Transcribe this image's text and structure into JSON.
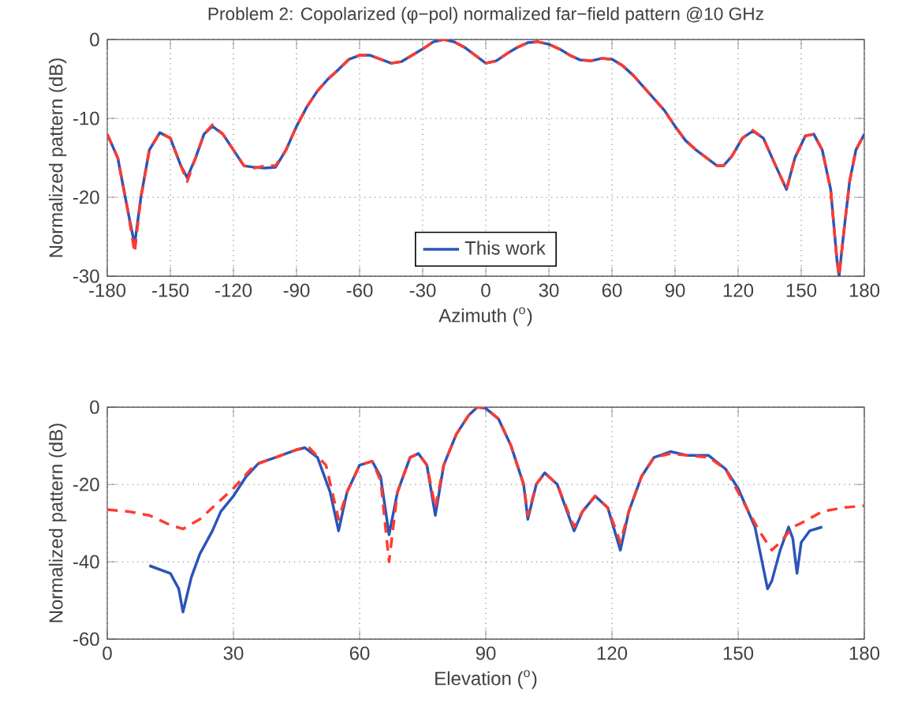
{
  "chart_data": [
    {
      "type": "line",
      "title": "Problem 2: Copolarized (φ−pol) normalized far−field pattern @10 GHz",
      "xlabel": "Azimuth ($^{o}$)",
      "ylabel": "Normalized pattern (dB)",
      "xlim": [
        -180,
        180
      ],
      "ylim": [
        -30,
        0
      ],
      "xticks": [
        -180,
        -150,
        -120,
        -90,
        -60,
        -30,
        0,
        30,
        60,
        90,
        120,
        150,
        180
      ],
      "yticks": [
        -30,
        -20,
        -10,
        0
      ],
      "grid": true,
      "legend": "bottom",
      "series": [
        {
          "name": "This work",
          "color": "#2b55b8",
          "line_style": "solid",
          "x": [
            -180,
            -175,
            -170,
            -167,
            -164,
            -160,
            -155,
            -150,
            -145,
            -142,
            -138,
            -134,
            -130,
            -125,
            -120,
            -115,
            -110,
            -105,
            -100,
            -95,
            -90,
            -85,
            -80,
            -75,
            -70,
            -65,
            -60,
            -55,
            -50,
            -45,
            -40,
            -35,
            -30,
            -25,
            -20,
            -15,
            -10,
            -5,
            0,
            5,
            10,
            15,
            20,
            25,
            30,
            35,
            40,
            45,
            50,
            55,
            60,
            65,
            70,
            75,
            80,
            85,
            90,
            95,
            100,
            105,
            110,
            113,
            117,
            122,
            127,
            132,
            137,
            143,
            147,
            152,
            156,
            160,
            164,
            167,
            168,
            170,
            173,
            176,
            180
          ],
          "values": [
            -12,
            -15,
            -22,
            -26,
            -20,
            -14,
            -11.8,
            -12.5,
            -16,
            -17.5,
            -15,
            -12,
            -11,
            -12,
            -14,
            -16,
            -16.2,
            -16.3,
            -16.2,
            -14,
            -11,
            -8.5,
            -6.5,
            -5,
            -3.8,
            -2.5,
            -2,
            -2,
            -2.5,
            -3,
            -2.8,
            -2,
            -1.2,
            -0.3,
            0,
            -0.3,
            -1,
            -2,
            -3,
            -2.7,
            -1.8,
            -1,
            -0.4,
            -0.3,
            -0.6,
            -1.2,
            -2,
            -2.6,
            -2.7,
            -2.4,
            -2.5,
            -3.3,
            -4.5,
            -6,
            -7.5,
            -9,
            -11,
            -12.8,
            -14,
            -15,
            -16,
            -16,
            -14.8,
            -12.5,
            -11.6,
            -12.5,
            -15.5,
            -19,
            -15,
            -12.2,
            -12,
            -14,
            -19,
            -28,
            -30,
            -25,
            -18,
            -14,
            -12
          ]
        },
        {
          "color": "#ff3b30",
          "line_style": "dashed",
          "x": [
            -180,
            -175,
            -170,
            -167,
            -164,
            -160,
            -155,
            -150,
            -145,
            -142,
            -138,
            -134,
            -130,
            -125,
            -120,
            -115,
            -110,
            -105,
            -100,
            -95,
            -90,
            -85,
            -80,
            -75,
            -70,
            -65,
            -60,
            -55,
            -50,
            -45,
            -40,
            -35,
            -30,
            -25,
            -20,
            -15,
            -10,
            -5,
            0,
            5,
            10,
            15,
            20,
            25,
            30,
            35,
            40,
            45,
            50,
            55,
            60,
            65,
            70,
            75,
            80,
            85,
            90,
            95,
            100,
            105,
            110,
            113,
            117,
            122,
            127,
            132,
            137,
            143,
            147,
            152,
            156,
            160,
            164,
            167,
            168,
            170,
            173,
            176,
            180
          ],
          "values": [
            -12,
            -15,
            -22,
            -27,
            -20,
            -14,
            -11.8,
            -12.5,
            -16,
            -18,
            -15,
            -12,
            -10.8,
            -12,
            -14,
            -16,
            -16.3,
            -16,
            -16,
            -14,
            -11,
            -8.5,
            -6.5,
            -5,
            -3.8,
            -2.5,
            -2,
            -2,
            -2.5,
            -3,
            -2.8,
            -2,
            -1.2,
            -0.3,
            0,
            -0.3,
            -1,
            -2,
            -3,
            -2.7,
            -1.8,
            -1,
            -0.4,
            -0.3,
            -0.6,
            -1.2,
            -2,
            -2.6,
            -2.7,
            -2.4,
            -2.5,
            -3.3,
            -4.5,
            -6,
            -7.5,
            -9,
            -11,
            -12.8,
            -14,
            -15,
            -16,
            -16,
            -14.8,
            -12.5,
            -11.5,
            -12.5,
            -15.5,
            -19,
            -15,
            -12.2,
            -12,
            -14,
            -19,
            -28,
            -30,
            -25,
            -18,
            -14,
            -12
          ]
        }
      ]
    },
    {
      "type": "line",
      "xlabel": "Elevation ($^{o}$)",
      "ylabel": "Normalized pattern (dB)",
      "xlim": [
        0,
        180
      ],
      "ylim": [
        -60,
        0
      ],
      "xticks": [
        0,
        30,
        60,
        90,
        120,
        150,
        180
      ],
      "yticks": [
        -60,
        -40,
        -20,
        0
      ],
      "grid": true,
      "series": [
        {
          "color": "#2b55b8",
          "line_style": "solid",
          "x": [
            10,
            15,
            17,
            18,
            20,
            22,
            25,
            27,
            30,
            33,
            36,
            40,
            45,
            47,
            50,
            53,
            55,
            57,
            60,
            63,
            65,
            67,
            69,
            72,
            74,
            76,
            78,
            80,
            83,
            86,
            88,
            90,
            93,
            96,
            99,
            100,
            102,
            104,
            107,
            111,
            113,
            116,
            119,
            122,
            124,
            127,
            130,
            134,
            138,
            143,
            147,
            150,
            154,
            157,
            158,
            160,
            162,
            163,
            164,
            165,
            167,
            170
          ],
          "values": [
            -41,
            -43,
            -47,
            -53,
            -44,
            -38,
            -32,
            -27,
            -23,
            -18,
            -14.5,
            -13,
            -11,
            -10.5,
            -13,
            -22,
            -32,
            -22,
            -15,
            -14,
            -18,
            -33,
            -22,
            -13,
            -12,
            -15,
            -28,
            -15,
            -7,
            -2,
            0,
            -0.3,
            -3,
            -10,
            -20,
            -29,
            -20,
            -17,
            -20,
            -32,
            -27,
            -23,
            -26,
            -37,
            -27,
            -18,
            -13,
            -11.5,
            -12.5,
            -12.5,
            -16,
            -21,
            -31,
            -47,
            -45,
            -37,
            -31,
            -34,
            -43,
            -35,
            -32,
            -31
          ]
        },
        {
          "color": "#ff3b30",
          "line_style": "dashed",
          "x": [
            0,
            5,
            10,
            15,
            18,
            22,
            25,
            30,
            35,
            40,
            45,
            48,
            52,
            55,
            57,
            60,
            63,
            65,
            67,
            69,
            72,
            74,
            76,
            78,
            80,
            83,
            86,
            88,
            90,
            93,
            96,
            99,
            100,
            102,
            104,
            107,
            111,
            113,
            116,
            119,
            122,
            124,
            127,
            130,
            134,
            138,
            143,
            147,
            150,
            155,
            158,
            160,
            163,
            165,
            170,
            175,
            180
          ],
          "values": [
            -26.5,
            -27,
            -28,
            -30.5,
            -31.5,
            -29,
            -26,
            -21,
            -15,
            -13,
            -11,
            -10.5,
            -15,
            -29,
            -22,
            -15,
            -14,
            -19,
            -40,
            -22,
            -13,
            -12,
            -15,
            -26,
            -15,
            -7,
            -2,
            0,
            -0.3,
            -3,
            -10,
            -20,
            -28,
            -20,
            -17,
            -20,
            -31,
            -27,
            -23,
            -26,
            -35,
            -27,
            -18,
            -13,
            -12,
            -12.5,
            -13,
            -16,
            -22,
            -32,
            -37,
            -35,
            -31,
            -30,
            -27,
            -26,
            -25.5
          ]
        }
      ]
    }
  ]
}
